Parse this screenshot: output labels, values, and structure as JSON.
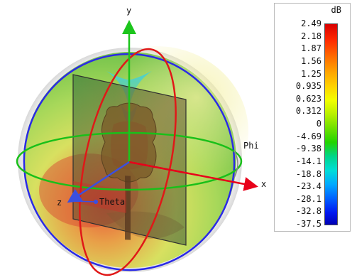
{
  "viewport": {
    "axes": {
      "x_label": "x",
      "y_label": "y",
      "z_label": "z",
      "theta_label": "Theta",
      "phi_label": "Phi"
    },
    "colors": {
      "x_axis": "#e8001a",
      "y_axis": "#1cc51c",
      "z_axis": "#3a4fe0",
      "phi_circle": "#2a2ae6",
      "theta_circle": "#e01818",
      "equator_circle": "#19c019"
    }
  },
  "legend": {
    "unit": "dB",
    "ticks": [
      "2.49",
      "2.18",
      "1.87",
      "1.56",
      "1.25",
      "0.935",
      "0.623",
      "0.312",
      "0",
      "-4.69",
      "-9.38",
      "-14.1",
      "-18.8",
      "-23.4",
      "-28.1",
      "-32.8",
      "-37.5"
    ]
  }
}
